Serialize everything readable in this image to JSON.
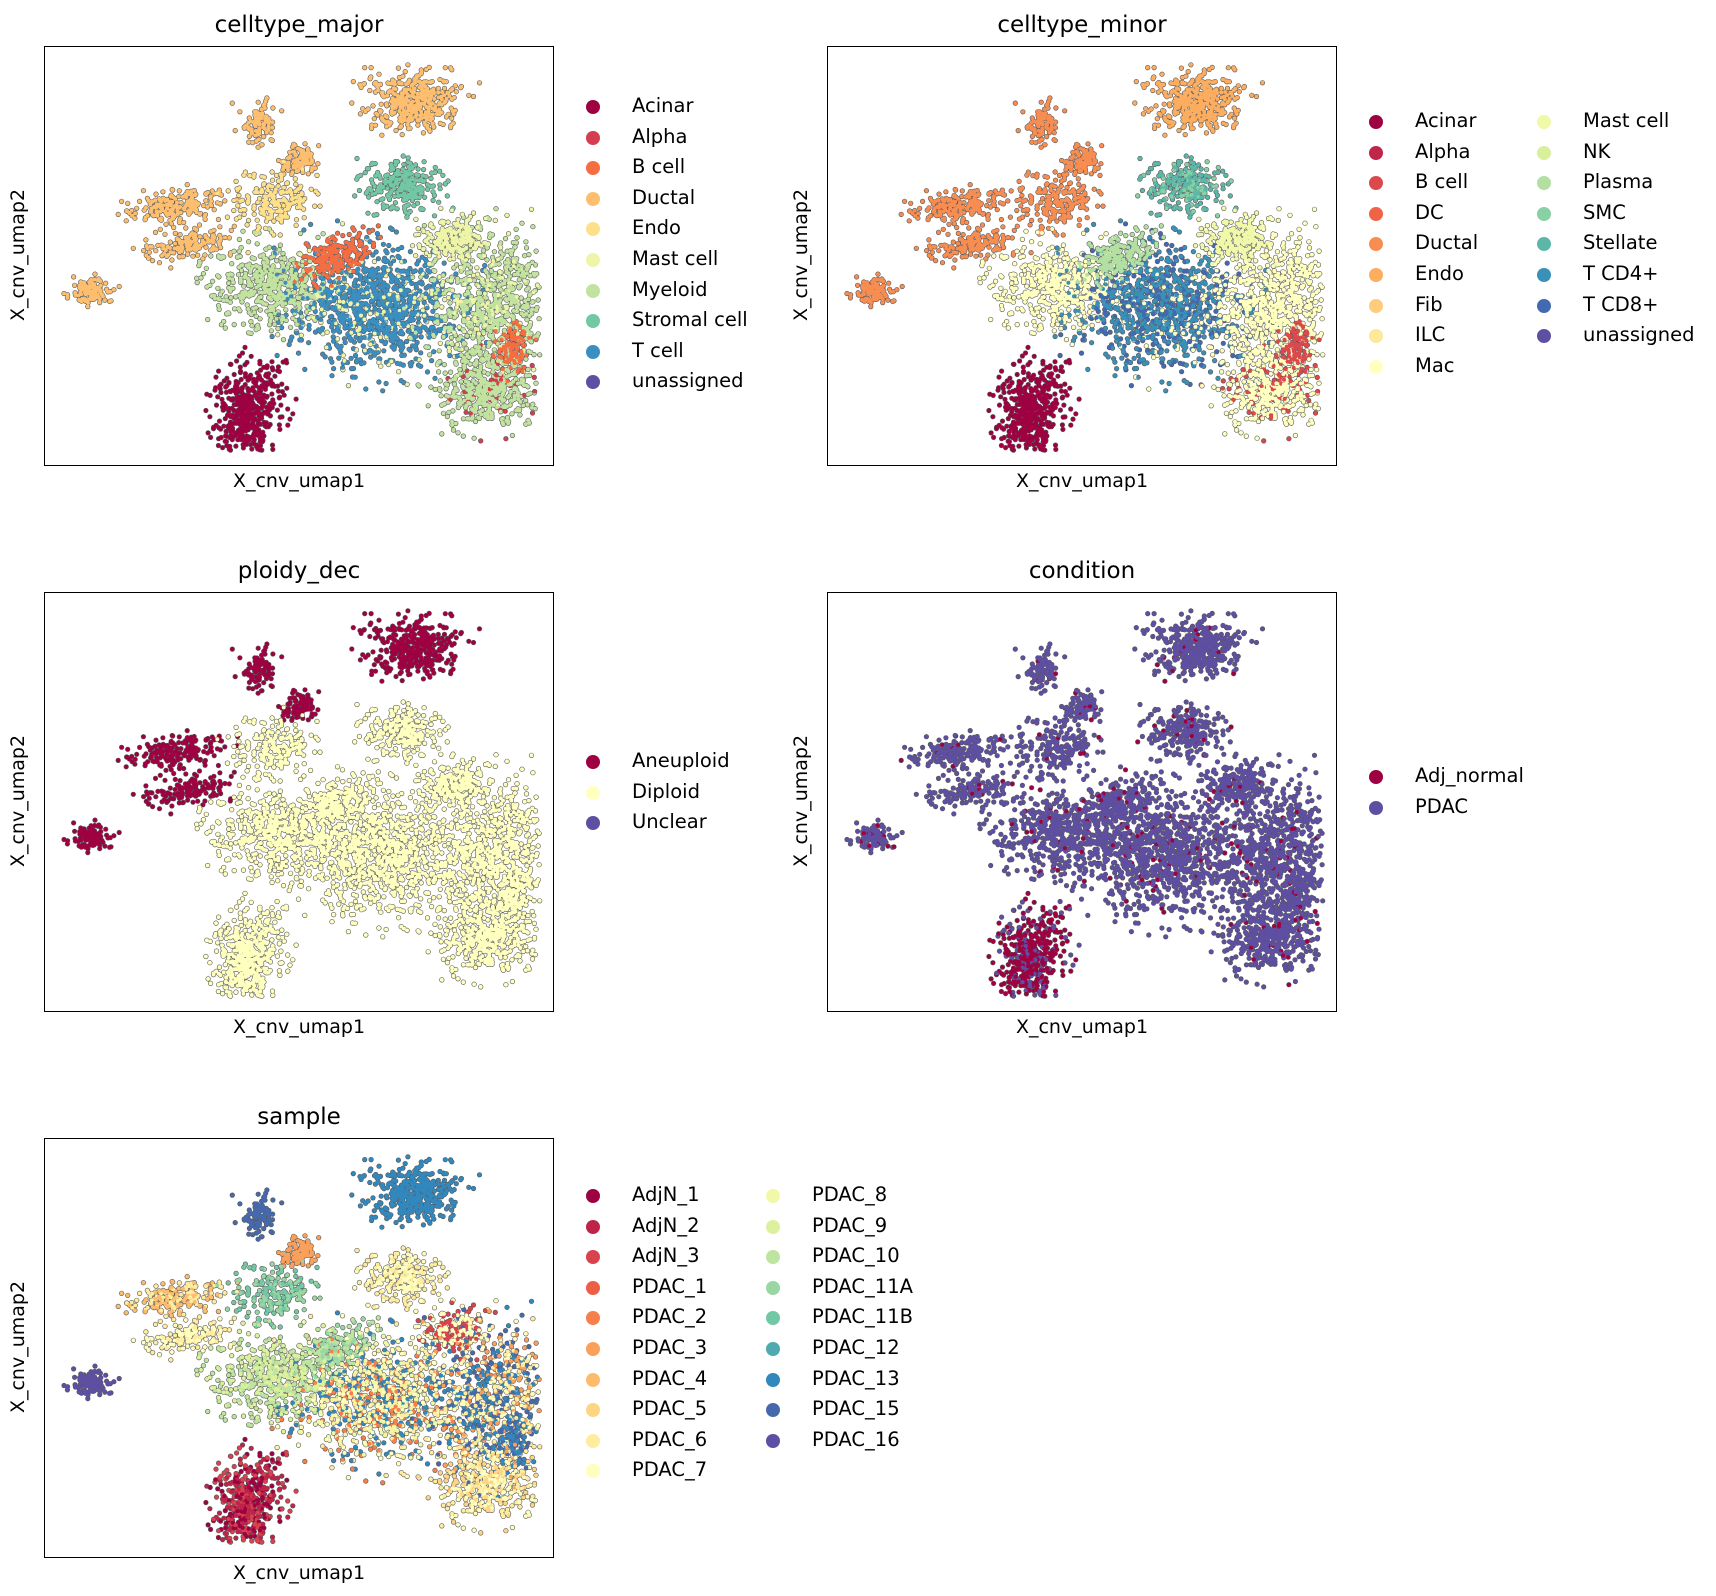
{
  "chart_data": [
    {
      "type": "scatter",
      "title": "celltype_major",
      "xlabel": "X_cnv_umap1",
      "ylabel": "X_cnv_umap2",
      "legend_position": "right",
      "legend_columns": 1,
      "categories": [
        {
          "name": "Acinar",
          "color": "#9e0142"
        },
        {
          "name": "Alpha",
          "color": "#d53e4f"
        },
        {
          "name": "B cell",
          "color": "#f46d43"
        },
        {
          "name": "Ductal",
          "color": "#fdbf6f"
        },
        {
          "name": "Endo",
          "color": "#fee08b"
        },
        {
          "name": "Mast cell",
          "color": "#eef5a9"
        },
        {
          "name": "Myeloid",
          "color": "#c2e3a0"
        },
        {
          "name": "Stromal cell",
          "color": "#72c7a4"
        },
        {
          "name": "T cell",
          "color": "#3b8fc0"
        },
        {
          "name": "unassigned",
          "color": "#5e4fa2"
        }
      ]
    },
    {
      "type": "scatter",
      "title": "celltype_minor",
      "xlabel": "X_cnv_umap1",
      "ylabel": "X_cnv_umap2",
      "legend_position": "right",
      "legend_columns": 2,
      "categories": [
        {
          "name": "Acinar",
          "color": "#9e0142"
        },
        {
          "name": "Alpha",
          "color": "#c0254a"
        },
        {
          "name": "B cell",
          "color": "#dc494c"
        },
        {
          "name": "DC",
          "color": "#ef6446"
        },
        {
          "name": "Ductal",
          "color": "#f88d52"
        },
        {
          "name": "Endo",
          "color": "#fdad60"
        },
        {
          "name": "Fib",
          "color": "#fecc7b"
        },
        {
          "name": "ILC",
          "color": "#fee89a"
        },
        {
          "name": "Mac",
          "color": "#ffffbf"
        },
        {
          "name": "Mast cell",
          "color": "#f0f8a9"
        },
        {
          "name": "NK",
          "color": "#d8ef9b"
        },
        {
          "name": "Plasma",
          "color": "#b3e0a2"
        },
        {
          "name": "SMC",
          "color": "#89d0a4"
        },
        {
          "name": "Stellate",
          "color": "#5db7a9"
        },
        {
          "name": "T CD4+",
          "color": "#3990b9"
        },
        {
          "name": "T CD8+",
          "color": "#436ab0"
        },
        {
          "name": "unassigned",
          "color": "#5e4fa2"
        }
      ]
    },
    {
      "type": "scatter",
      "title": "ploidy_dec",
      "xlabel": "X_cnv_umap1",
      "ylabel": "X_cnv_umap2",
      "legend_position": "right",
      "legend_columns": 1,
      "categories": [
        {
          "name": "Aneuploid",
          "color": "#9e0142"
        },
        {
          "name": "Diploid",
          "color": "#ffffbf"
        },
        {
          "name": "Unclear",
          "color": "#5e4fa2"
        }
      ]
    },
    {
      "type": "scatter",
      "title": "condition",
      "xlabel": "X_cnv_umap1",
      "ylabel": "X_cnv_umap2",
      "legend_position": "right",
      "legend_columns": 1,
      "categories": [
        {
          "name": "Adj_normal",
          "color": "#9e0142"
        },
        {
          "name": "PDAC",
          "color": "#5e4fa2"
        }
      ]
    },
    {
      "type": "scatter",
      "title": "sample",
      "xlabel": "X_cnv_umap1",
      "ylabel": "X_cnv_umap2",
      "legend_position": "right",
      "legend_columns": 2,
      "categories": [
        {
          "name": "AdjN_1",
          "color": "#9e0142"
        },
        {
          "name": "AdjN_2",
          "color": "#be2449"
        },
        {
          "name": "AdjN_3",
          "color": "#d8434e"
        },
        {
          "name": "PDAC_1",
          "color": "#ec5f46"
        },
        {
          "name": "PDAC_2",
          "color": "#f67f4b"
        },
        {
          "name": "PDAC_3",
          "color": "#fba05b"
        },
        {
          "name": "PDAC_4",
          "color": "#fdbc6d"
        },
        {
          "name": "PDAC_5",
          "color": "#fed584"
        },
        {
          "name": "PDAC_6",
          "color": "#feec9f"
        },
        {
          "name": "PDAC_7",
          "color": "#fffebe"
        },
        {
          "name": "PDAC_8",
          "color": "#f1f9a9"
        },
        {
          "name": "PDAC_9",
          "color": "#dcf09e"
        },
        {
          "name": "PDAC_10",
          "color": "#bde5a0"
        },
        {
          "name": "PDAC_11A",
          "color": "#98d6a4"
        },
        {
          "name": "PDAC_11B",
          "color": "#72c7a4"
        },
        {
          "name": "PDAC_12",
          "color": "#4fa9b0"
        },
        {
          "name": "PDAC_13",
          "color": "#3288bd"
        },
        {
          "name": "PDAC_15",
          "color": "#4669ad"
        },
        {
          "name": "PDAC_16",
          "color": "#5e4fa2"
        }
      ]
    }
  ]
}
